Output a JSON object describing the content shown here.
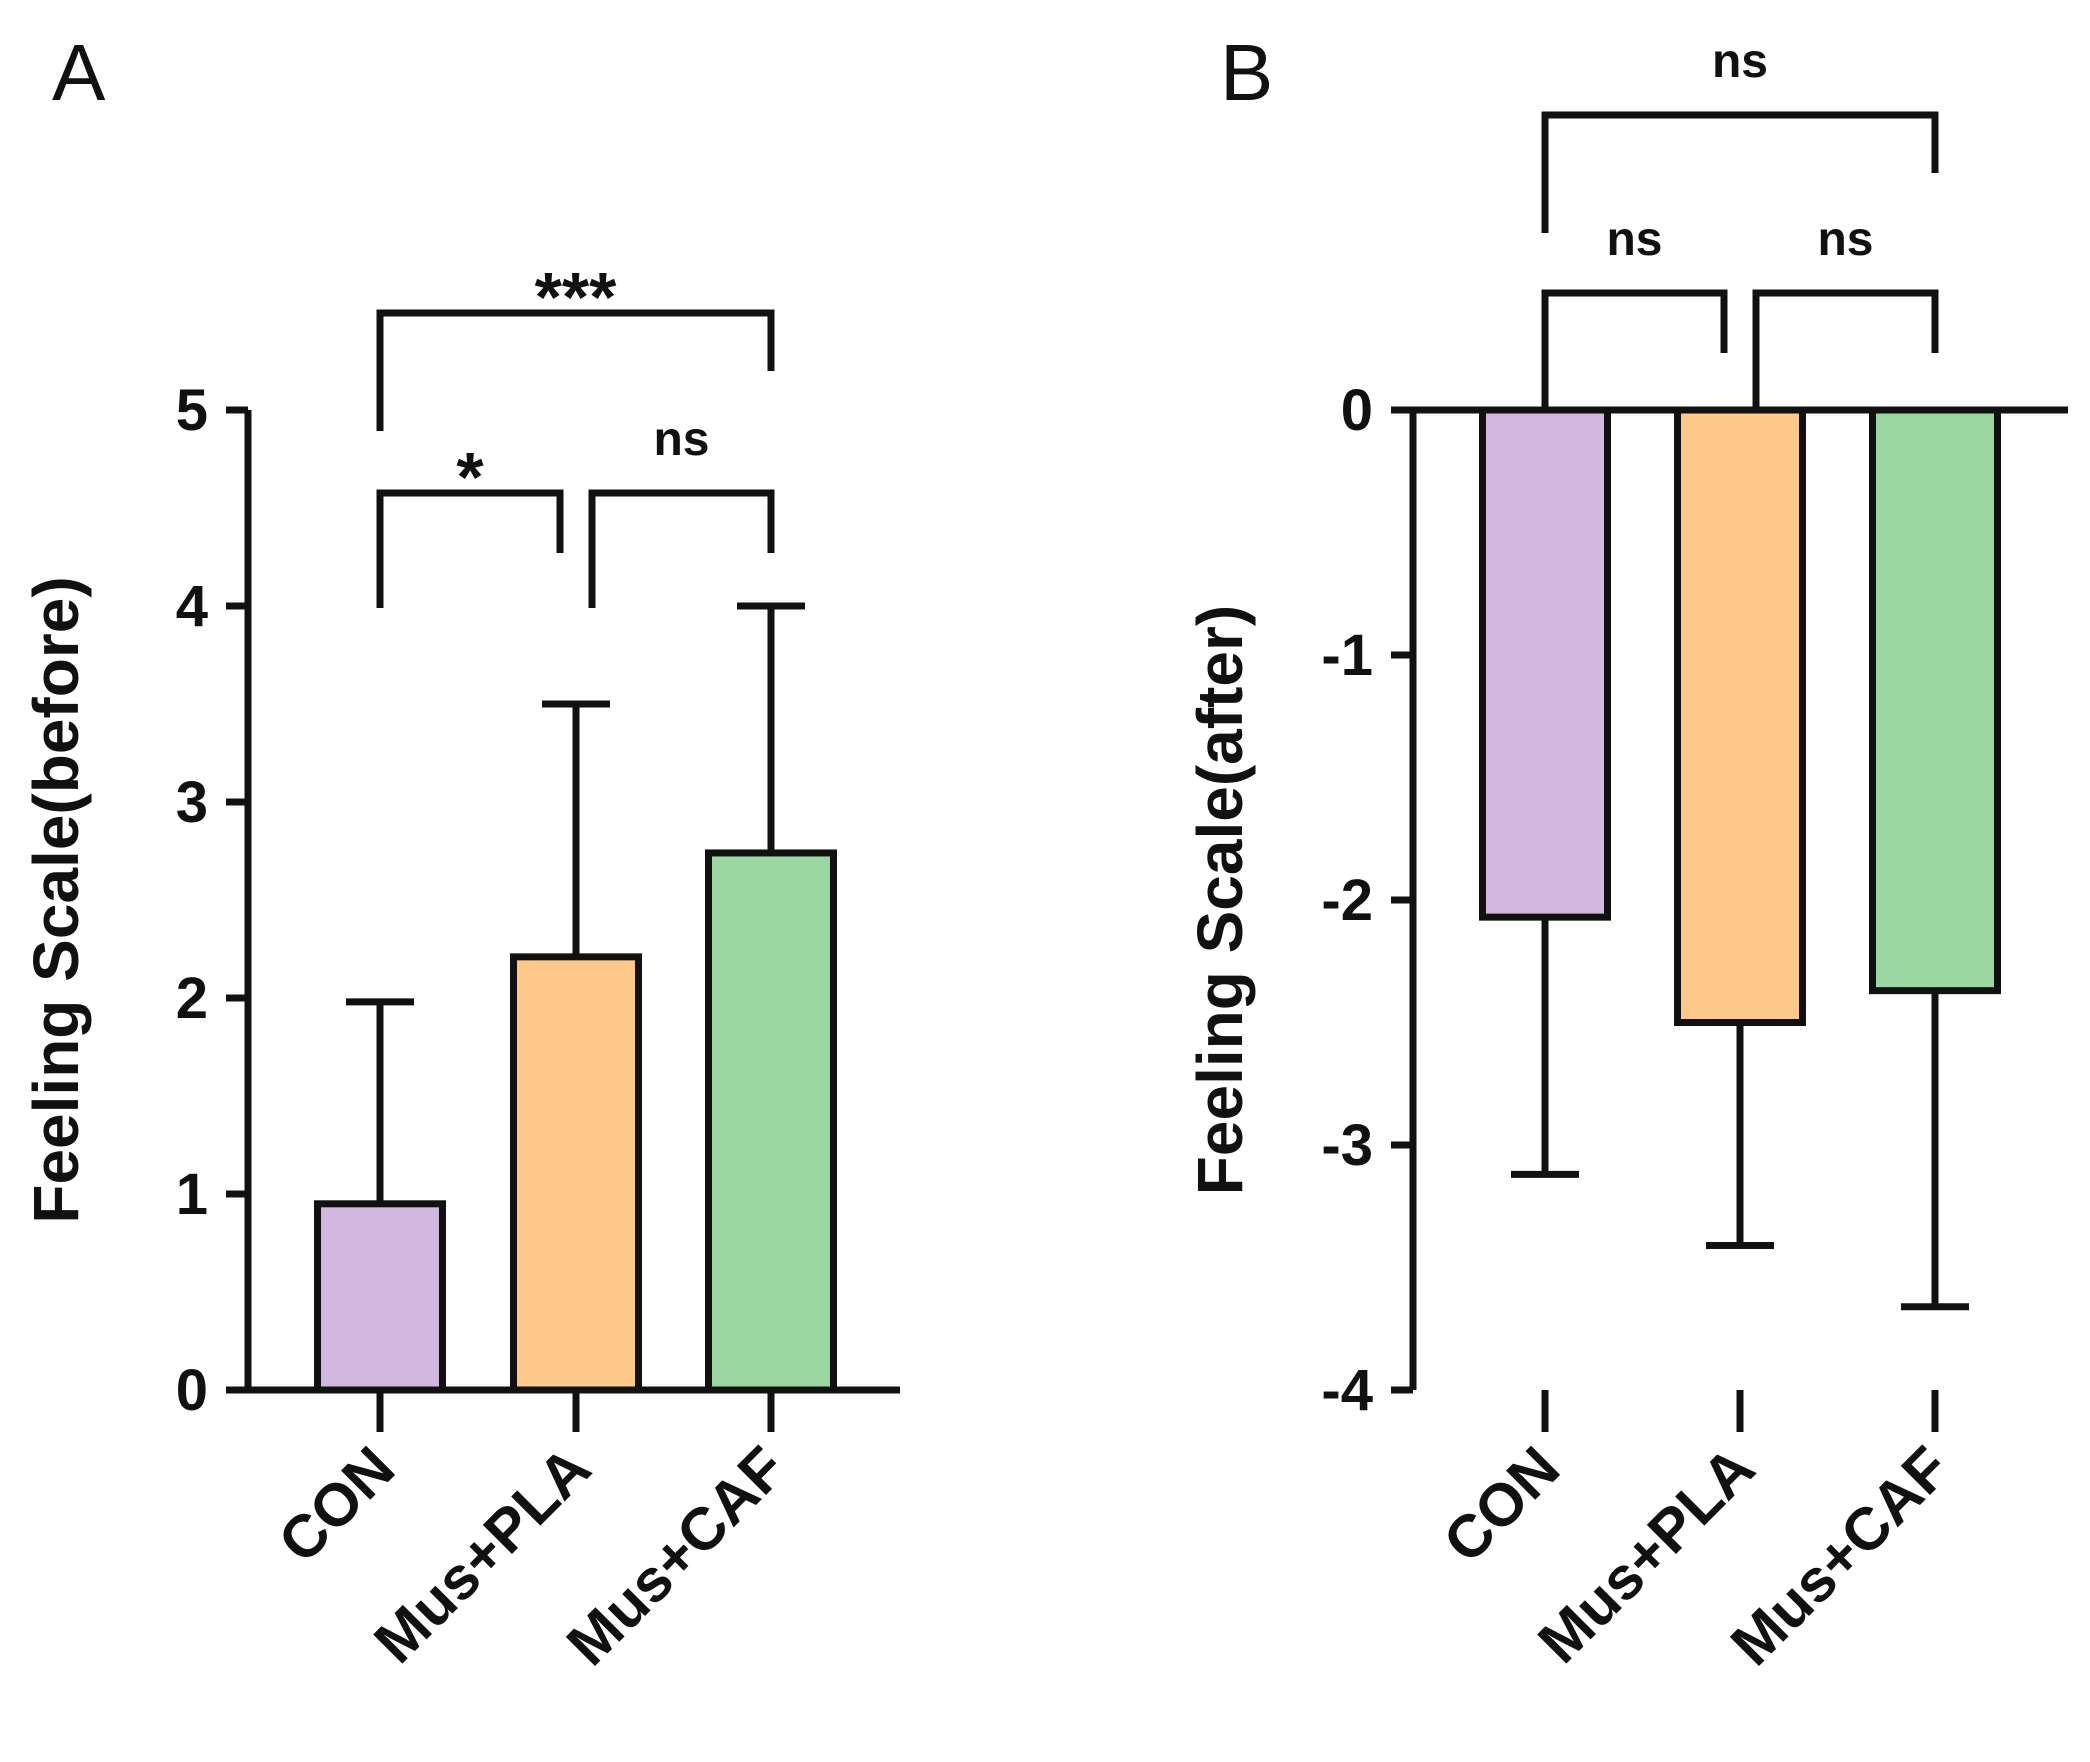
{
  "figure": {
    "panels": [
      "A",
      "B"
    ]
  },
  "chart_data": [
    {
      "panel": "A",
      "type": "bar",
      "ylabel": "Feeling Scale(before)",
      "xlabel": "",
      "ylim": [
        0,
        5
      ],
      "yticks": [
        "0",
        "1",
        "2",
        "3",
        "4",
        "5"
      ],
      "categories": [
        "CON",
        "Mus+PLA",
        "Mus+CAF"
      ],
      "values": [
        0.95,
        2.21,
        2.74
      ],
      "errors": [
        1.03,
        1.29,
        1.26
      ],
      "error_direction": "up",
      "colors": [
        "#d2b7de",
        "#fdc98a",
        "#9bd7a0"
      ],
      "significance": [
        {
          "from": "CON",
          "to": "Mus+PLA",
          "label": "*",
          "level": 1
        },
        {
          "from": "Mus+PLA",
          "to": "Mus+CAF",
          "label": "ns",
          "level": 1
        },
        {
          "from": "CON",
          "to": "Mus+CAF",
          "label": "***",
          "level": 2
        }
      ]
    },
    {
      "panel": "B",
      "type": "bar",
      "ylabel": "Feeling Scale(after)",
      "xlabel": "",
      "ylim": [
        -4,
        0
      ],
      "yticks": [
        "-4",
        "-3",
        "-2",
        "-1",
        "0"
      ],
      "categories": [
        "CON",
        "Mus+PLA",
        "Mus+CAF"
      ],
      "values": [
        -2.07,
        -2.5,
        -2.37
      ],
      "errors": [
        1.05,
        0.91,
        1.29
      ],
      "error_direction": "down",
      "colors": [
        "#d2b7de",
        "#fdc98a",
        "#9bd7a0"
      ],
      "significance": [
        {
          "from": "CON",
          "to": "Mus+PLA",
          "label": "ns",
          "level": 1
        },
        {
          "from": "Mus+PLA",
          "to": "Mus+CAF",
          "label": "ns",
          "level": 1
        },
        {
          "from": "CON",
          "to": "Mus+CAF",
          "label": "ns",
          "level": 2
        }
      ]
    }
  ]
}
